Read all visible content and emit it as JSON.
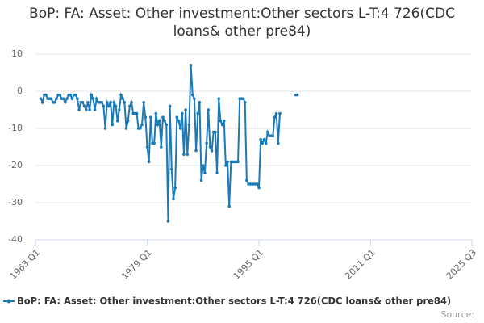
{
  "chart_data": {
    "type": "line",
    "title": "BoP: FA: Asset: Other investment:Other sectors L-T:4 726(CDC loans& other pre84)",
    "source": "Source:",
    "categories": [
      "1963 Q1",
      null,
      null,
      null,
      null,
      null,
      null,
      null,
      null,
      null,
      null,
      null,
      null,
      null,
      null,
      null,
      null,
      null,
      null,
      null,
      null,
      null,
      null,
      null,
      null,
      null,
      null,
      null,
      null,
      null,
      null,
      null,
      null,
      null,
      null,
      null,
      null,
      null,
      null,
      null,
      null,
      null,
      null,
      null,
      null,
      null,
      null,
      null,
      null,
      null,
      null,
      null,
      null,
      null,
      null,
      null,
      null,
      null,
      null,
      null,
      null,
      null,
      null,
      null,
      "1979 Q1",
      null,
      null,
      null,
      null,
      null,
      null,
      null,
      null,
      null,
      null,
      null,
      null,
      null,
      null,
      null,
      null,
      null,
      null,
      null,
      null,
      null,
      null,
      null,
      null,
      null,
      null,
      null,
      null,
      null,
      null,
      null,
      null,
      null,
      null,
      null,
      null,
      null,
      null,
      null,
      null,
      null,
      null,
      null,
      null,
      null,
      null,
      null,
      null,
      null,
      null,
      null,
      null,
      null,
      null,
      null,
      null,
      null,
      null,
      null,
      null,
      null,
      null,
      null,
      "1995 Q1",
      null,
      null,
      null,
      null,
      null,
      null,
      null,
      null,
      null,
      null,
      null,
      null,
      null,
      null,
      null,
      null,
      null,
      null,
      null,
      null,
      null,
      null,
      null,
      null,
      null,
      null,
      null,
      null,
      null,
      null,
      null,
      null,
      null,
      null,
      null,
      null,
      null,
      null,
      null,
      null,
      null,
      null,
      null,
      null,
      null,
      null,
      null,
      null,
      null,
      null,
      null,
      null,
      null,
      null,
      null,
      null,
      null,
      null,
      null,
      null,
      null,
      null,
      null,
      "2011 Q1",
      null,
      null,
      null,
      null,
      null,
      null,
      null,
      null,
      null,
      null,
      null,
      null,
      null,
      null,
      null,
      null,
      null,
      null,
      null,
      null,
      null,
      null,
      null,
      null,
      null,
      null,
      null,
      null,
      null,
      null,
      null,
      null,
      null,
      null,
      null,
      null,
      null,
      null,
      null,
      null,
      null,
      null,
      null,
      null,
      null,
      null,
      null,
      null,
      null,
      null,
      null,
      null,
      null,
      null,
      null,
      null,
      null,
      "2025 Q3"
    ],
    "series": [
      {
        "name": "BoP: FA: Asset: Other investment:Other sectors L-T:4 726(CDC loans& other pre84)",
        "color": "#1a7ab8",
        "values": [
          null,
          null,
          null,
          -2,
          -3,
          -1,
          -1,
          -2,
          -2,
          -2,
          -3,
          -3,
          -2,
          -1,
          -1,
          -2,
          -2,
          -3,
          -2,
          -1,
          -1,
          -2,
          -1,
          -1,
          -2,
          -5,
          -3,
          -3,
          -4,
          -5,
          -3,
          -5,
          -1,
          -2,
          -5,
          -2,
          -3,
          -3,
          -3,
          -4,
          -10,
          -3,
          -4,
          -3,
          -9,
          -3,
          -4,
          -8,
          -5,
          -1,
          -2,
          -3,
          -10,
          -8,
          -4,
          -3,
          -6,
          -6,
          -6,
          -10,
          -10,
          -9,
          -3,
          -7,
          -15,
          -19,
          -7,
          -14,
          -14,
          -6,
          -9,
          -8,
          -15,
          -7,
          -8,
          -9,
          -35,
          -4,
          -21,
          -29,
          -26,
          -7,
          -8,
          -10,
          -6,
          -17,
          -5,
          -17,
          -9,
          7,
          -1,
          -2,
          -16,
          -6,
          -3,
          -24,
          -20,
          -22,
          -14,
          -5,
          -15,
          -16,
          -11,
          -11,
          -22,
          -2,
          -8,
          -9,
          -8,
          -20,
          -19,
          -31,
          -19,
          -19,
          -19,
          -19,
          -19,
          -2,
          -2,
          -2,
          -3,
          -24,
          -25,
          -25,
          -25,
          -25,
          -25,
          -25,
          -26,
          -13,
          -14,
          -13,
          -14,
          -11,
          -12,
          -12,
          -12,
          -7,
          -6,
          -14,
          -6,
          null,
          null,
          null,
          null,
          null,
          null,
          null,
          null,
          -1,
          -1,
          null,
          null,
          null,
          null,
          null,
          null,
          null,
          null,
          null,
          null,
          null,
          null,
          null,
          null,
          null,
          null,
          null,
          null,
          null,
          null,
          null,
          null,
          null,
          null,
          null,
          null,
          null,
          null,
          null,
          null,
          null,
          null,
          null,
          null,
          null,
          null,
          null,
          null,
          null,
          null,
          null,
          null,
          null,
          null,
          null,
          null,
          null,
          null,
          null,
          null,
          null,
          null,
          null,
          null,
          null,
          null,
          null,
          null,
          null,
          null,
          null,
          null,
          null,
          null,
          null,
          null,
          null,
          null,
          null,
          null,
          null,
          null,
          null,
          null,
          null,
          null,
          null,
          null,
          null,
          null,
          null,
          null,
          null,
          null,
          null,
          null,
          null,
          null,
          null,
          null,
          null,
          null,
          null,
          null,
          null,
          null,
          null,
          null,
          null,
          null
        ]
      }
    ],
    "ylim": [
      -40,
      10
    ],
    "yticks": [
      -40,
      -30,
      -20,
      -10,
      0,
      10
    ],
    "grid": true
  }
}
